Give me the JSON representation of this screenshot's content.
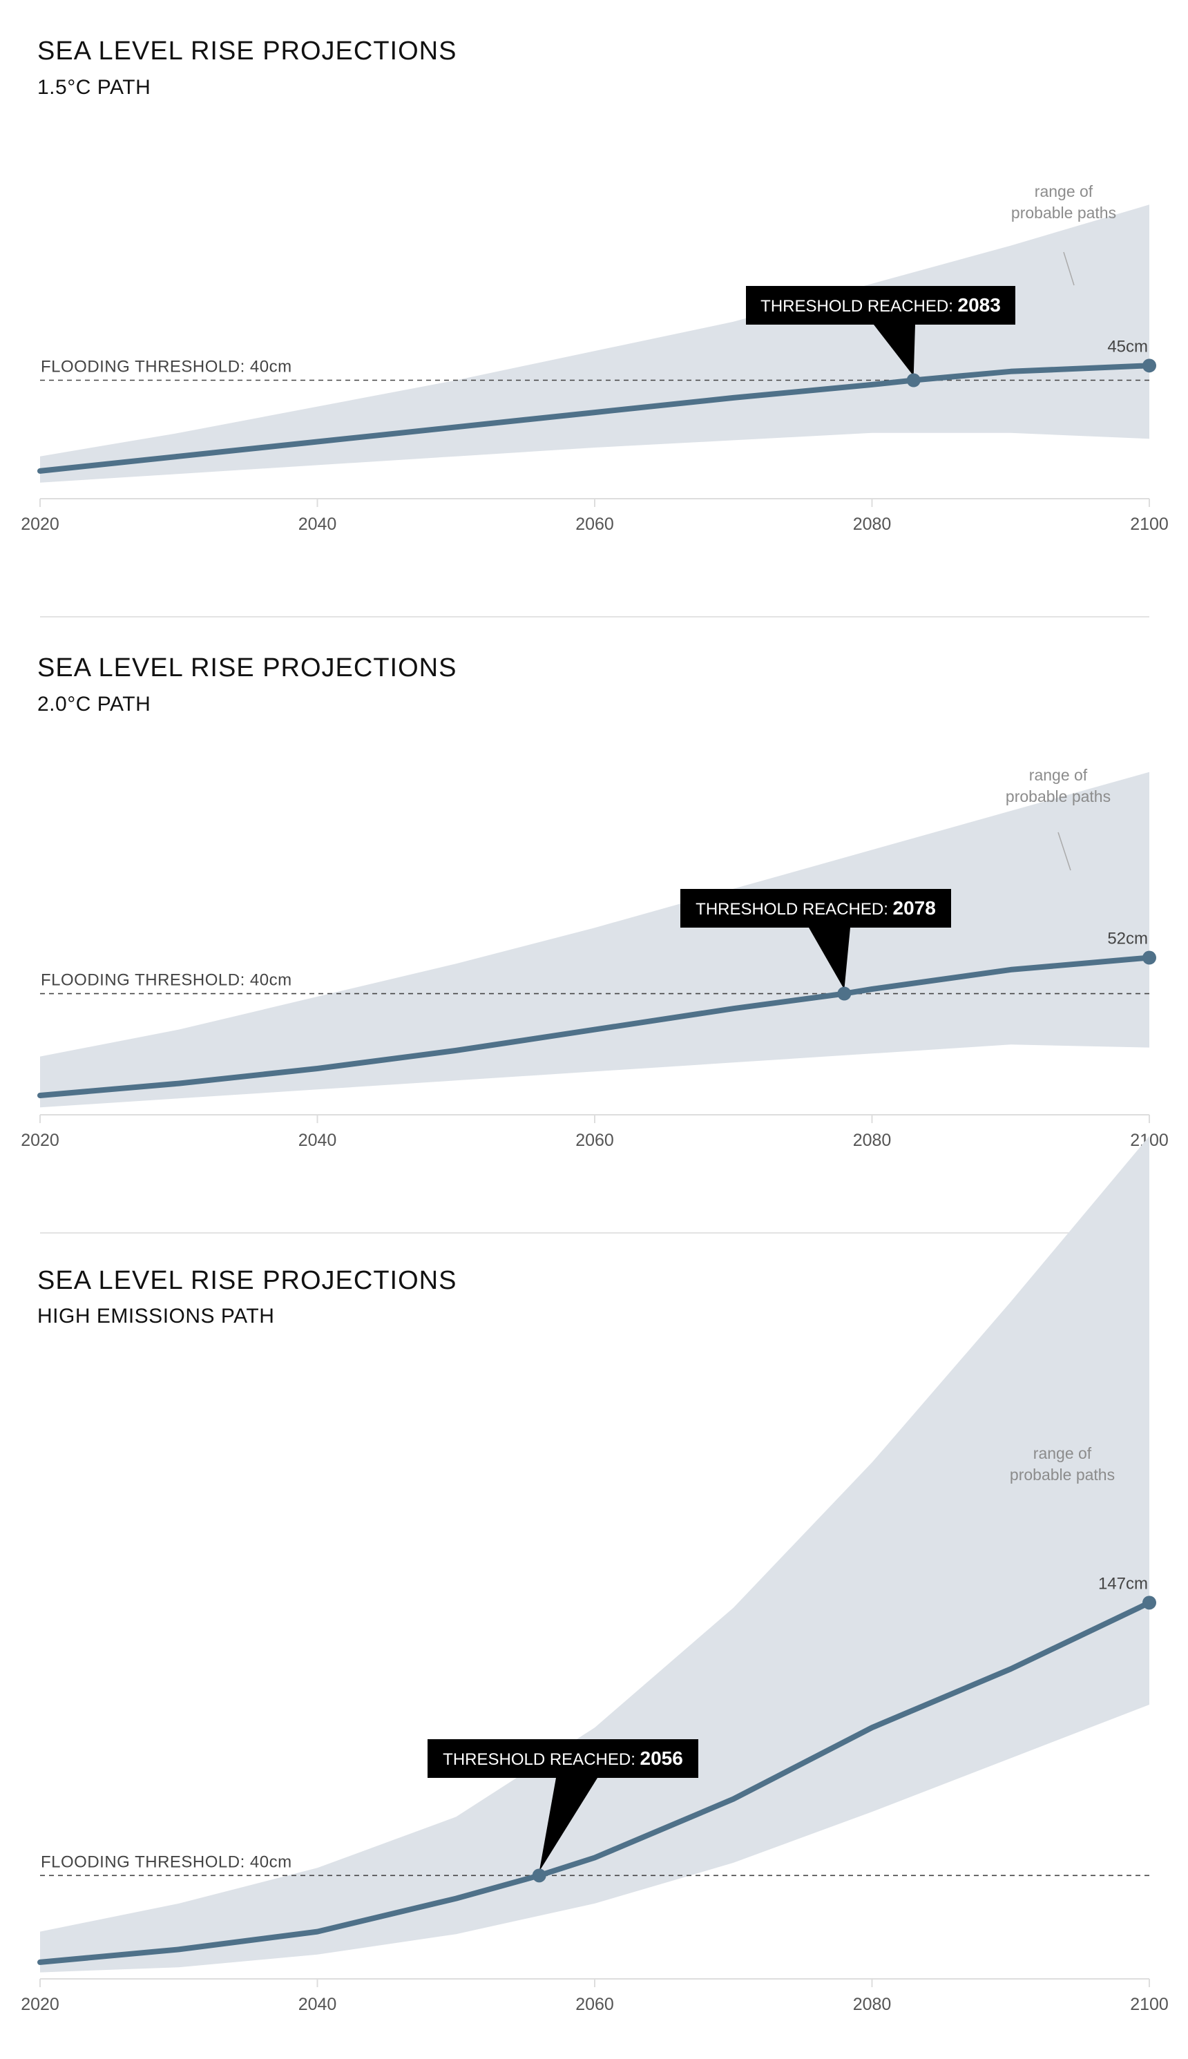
{
  "colors": {
    "band": "#dde2e8",
    "line": "#4f7189",
    "callout": "#000000",
    "threshold_line": "#444444",
    "separator": "#e3e3e3",
    "axis": "#dddddd"
  },
  "chart_data": [
    {
      "type": "area",
      "title": "SEA LEVEL RISE PROJECTIONS",
      "subtitle": "1.5°C PATH",
      "x_ticks": [
        "2020",
        "2040",
        "2060",
        "2080",
        "2100"
      ],
      "xlim": [
        2020,
        2100
      ],
      "ylim": [
        0,
        118
      ],
      "threshold": {
        "value": 40,
        "label": "FLOODING THRESHOLD: 40cm"
      },
      "threshold_year": {
        "year": 2083,
        "label_prefix": "THRESHOLD REACHED:",
        "label_year": "2083"
      },
      "range_label": [
        "range of",
        "probable paths"
      ],
      "end_label": "45cm",
      "series": [
        {
          "x": [
            2020,
            2030,
            2040,
            2050,
            2060,
            2070,
            2080,
            2083,
            2090,
            2100
          ],
          "y": [
            9,
            14,
            19,
            24,
            29,
            34,
            38.5,
            40,
            43,
            45
          ]
        }
      ],
      "band": {
        "x": [
          2020,
          2030,
          2040,
          2050,
          2060,
          2070,
          2080,
          2090,
          2100
        ],
        "lower": [
          5,
          8,
          11,
          14,
          17,
          19.5,
          22,
          22,
          20
        ],
        "upper": [
          14,
          22,
          31,
          40,
          50,
          60,
          73,
          86,
          100
        ]
      }
    },
    {
      "type": "area",
      "title": "SEA LEVEL RISE PROJECTIONS",
      "subtitle": "2.0°C PATH",
      "x_ticks": [
        "2020",
        "2040",
        "2060",
        "2080",
        "2100"
      ],
      "xlim": [
        2020,
        2100
      ],
      "ylim": [
        0,
        116
      ],
      "threshold": {
        "value": 40,
        "label": "FLOODING THRESHOLD: 40cm"
      },
      "threshold_year": {
        "year": 2078,
        "label_prefix": "THRESHOLD REACHED:",
        "label_year": "2078"
      },
      "range_label": [
        "range of",
        "probable paths"
      ],
      "end_label": "52cm",
      "series": [
        {
          "x": [
            2020,
            2030,
            2040,
            2050,
            2060,
            2070,
            2078,
            2080,
            2090,
            2100
          ],
          "y": [
            6,
            10,
            15,
            21,
            28,
            35,
            40,
            41.5,
            48,
            52
          ]
        }
      ],
      "band": {
        "x": [
          2020,
          2030,
          2040,
          2050,
          2060,
          2070,
          2080,
          2090,
          2100
        ],
        "lower": [
          2,
          5,
          8,
          11,
          14,
          17,
          20,
          23,
          22
        ],
        "upper": [
          19,
          28,
          39,
          50,
          62,
          75,
          88,
          101,
          114
        ]
      }
    },
    {
      "type": "area",
      "title": "SEA LEVEL RISE PROJECTIONS",
      "subtitle": "HIGH EMISSIONS PATH",
      "x_ticks": [
        "2020",
        "2040",
        "2060",
        "2080",
        "2100"
      ],
      "xlim": [
        2020,
        2100
      ],
      "ylim": [
        0,
        282
      ],
      "threshold": {
        "value": 40,
        "label": "FLOODING THRESHOLD: 40cm"
      },
      "threshold_year": {
        "year": 2056,
        "label_prefix": "THRESHOLD REACHED:",
        "label_year": "2056"
      },
      "range_label": [
        "range of",
        "probable paths"
      ],
      "end_label": "147cm",
      "series": [
        {
          "x": [
            2020,
            2030,
            2040,
            2050,
            2056,
            2060,
            2070,
            2080,
            2090,
            2100
          ],
          "y": [
            6,
            11,
            18,
            31,
            40,
            47,
            70,
            98,
            121,
            147
          ]
        }
      ],
      "band": {
        "x": [
          2020,
          2030,
          2040,
          2050,
          2060,
          2070,
          2080,
          2090,
          2100
        ],
        "lower": [
          2,
          4,
          9,
          17,
          29,
          45,
          65,
          86,
          107
        ],
        "upper": [
          18,
          29,
          43,
          63,
          98,
          145,
          202,
          265,
          330
        ]
      }
    }
  ]
}
